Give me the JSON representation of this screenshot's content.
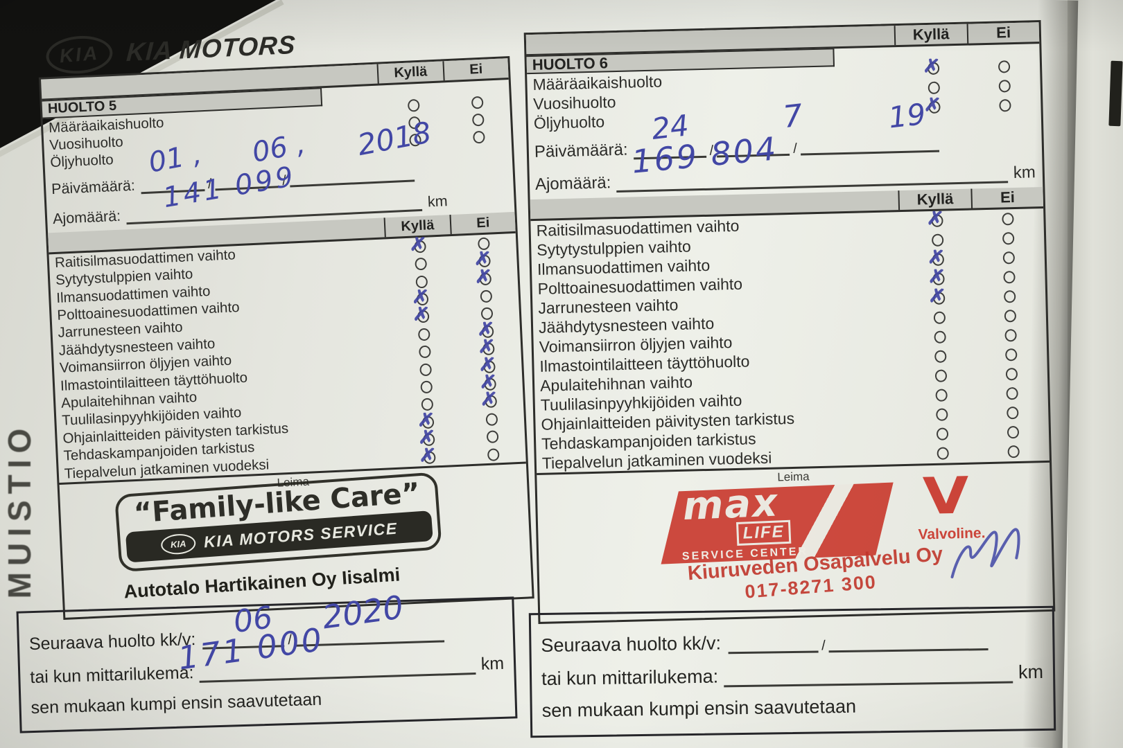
{
  "colors": {
    "paper": "#e8e9e2",
    "background": "#151513",
    "band_gray": "#c7c8c1",
    "print_ink": "#2b2b28",
    "pen_blue": "#4247a5",
    "stamp_black": "#1c1c16",
    "stamp_red": "#c83327"
  },
  "edge_text": "MUISTIO",
  "labels": {
    "kylla": "Kyllä",
    "ei": "Ei",
    "paivamaara": "Päivämäärä:",
    "ajomaara": "Ajomäärä:",
    "km": "km",
    "slash": "/",
    "leima": "Leima",
    "next_service": "Seuraava huolto kk/v:",
    "next_mileage": "tai kun mittarilukema:",
    "next_note": "sen mukaan kumpi ensin saavutetaan"
  },
  "items_top": [
    "Määräaikaishuolto",
    "Vuosihuolto",
    "Öljyhuolto"
  ],
  "items_checklist": [
    "Raitisilmasuodattimen vaihto",
    "Sytytystulppien vaihto",
    "Ilmansuodattimen vaihto",
    "Polttoainesuodattimen vaihto",
    "Jarrunesteen vaihto",
    "Jäähdytysnesteen vaihto",
    "Voimansiirron öljyjen vaihto",
    "Ilmastointilaitteen täyttöhuolto",
    "Apulaitehihnan vaihto",
    "Tuulilasinpyyhkijöiden vaihto",
    "Ohjainlaitteiden päivitysten tarkistus",
    "Tehdaskampanjoiden tarkistus",
    "Tiepalvelun jatkaminen vuodeksi"
  ],
  "panels": [
    {
      "title": "HUOLTO 5",
      "brand": {
        "logo": "KIA",
        "name": "KIA MOTORS"
      },
      "top_marks": [
        null,
        null,
        null
      ],
      "date": {
        "day": "01 ,",
        "month": "06 ,",
        "year": "2018"
      },
      "mileage": "141 099",
      "checks": [
        "kylla",
        "ei",
        "ei",
        "kylla",
        "kylla",
        "ei",
        "ei",
        "ei",
        "ei",
        "ei",
        "kylla",
        "kylla",
        "kylla"
      ],
      "stamp": {
        "quote": "“Family-like Care”",
        "logo": "KIA",
        "band": "KIA MOTORS SERVICE",
        "dealer": "Autotalo Hartikainen Oy Iisalmi"
      },
      "next": {
        "month": "06",
        "year": "2020",
        "mileage": "171 000"
      }
    },
    {
      "title": "HUOLTO 6",
      "top_marks": [
        "kylla",
        null,
        "kylla"
      ],
      "date": {
        "day": "24",
        "month": "7",
        "year": "19"
      },
      "mileage": "169 804",
      "checks": [
        "kylla",
        null,
        "kylla",
        "kylla",
        "kylla",
        null,
        null,
        null,
        null,
        null,
        null,
        null,
        null
      ],
      "stamp": {
        "max": "max",
        "life": "LIFE",
        "service_center": "SERVICE CENTER",
        "valvoline_v": "V",
        "valvoline": "Valvoline.",
        "dealer": "Kiuruveden Osapalvelu Oy",
        "phone": "017-8271 300"
      },
      "next": {
        "month": "",
        "year": "",
        "mileage": ""
      }
    }
  ]
}
